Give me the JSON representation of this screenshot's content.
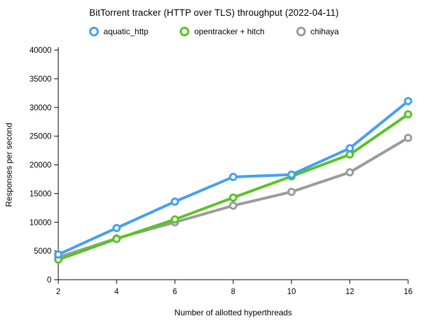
{
  "chart_data": {
    "type": "line",
    "title": "BitTorrent tracker (HTTP over TLS) throughput (2022-04-11)",
    "xlabel": "Number of allotted hyperthreads",
    "ylabel": "Responses per second",
    "categories": [
      "2",
      "4",
      "6",
      "8",
      "10",
      "12",
      "16"
    ],
    "series": [
      {
        "name": "aquatic_http",
        "color": "#41a0f7",
        "values": [
          4400,
          9000,
          13600,
          17900,
          18300,
          22900,
          31100
        ]
      },
      {
        "name": "opentracker + hitch",
        "color": "#56c521",
        "values": [
          3500,
          7100,
          10500,
          14300,
          18000,
          21800,
          28800
        ]
      },
      {
        "name": "chihaya",
        "color": "#9b9b9b",
        "values": [
          3900,
          7200,
          10000,
          12900,
          15300,
          18700,
          24700
        ]
      }
    ],
    "ylim": [
      0,
      40000
    ],
    "yticks": [
      0,
      5000,
      10000,
      15000,
      20000,
      25000,
      30000,
      35000,
      40000
    ],
    "grid": false,
    "legend_position": "top",
    "marker_style": "open-circle",
    "axis_color": "#000000",
    "background_color": "#ffffff"
  }
}
